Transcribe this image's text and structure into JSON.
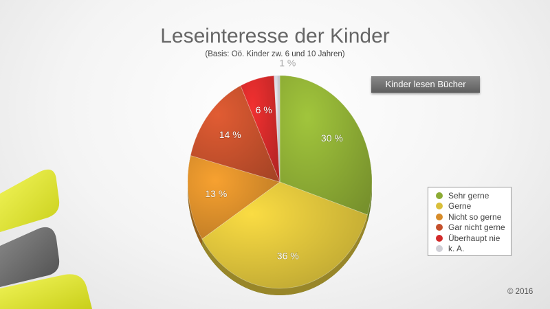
{
  "title": "Leseinteresse der Kinder",
  "subtitle": "(Basis: Oö. Kinder zw. 6 und 10 Jahren)",
  "badge": "Kinder lesen Bücher",
  "copyright": "© 2016",
  "chart_data": {
    "type": "pie",
    "title": "Leseinteresse der Kinder",
    "subtitle": "(Basis: Oö. Kinder zw. 6 und 10 Jahren)",
    "start_angle_deg": 0,
    "direction": "clockwise",
    "legend_position": "right",
    "slices": [
      {
        "label": "Sehr gerne",
        "value": 30,
        "display": "30  %",
        "color": "#8cab34"
      },
      {
        "label": "Gerne",
        "value": 36,
        "display": "36  %",
        "color": "#d9bf3a"
      },
      {
        "label": "Nicht so gerne",
        "value": 13,
        "display": "13  %",
        "color": "#d78c2a"
      },
      {
        "label": "Gar nicht gerne",
        "value": 14,
        "display": "14  %",
        "color": "#c4502c"
      },
      {
        "label": "Überhaupt nie",
        "value": 6,
        "display": "6  %",
        "color": "#d22a2a"
      },
      {
        "label": "k. A.",
        "value": 1,
        "display": "1  %",
        "color": "#cfcfd6"
      }
    ]
  }
}
